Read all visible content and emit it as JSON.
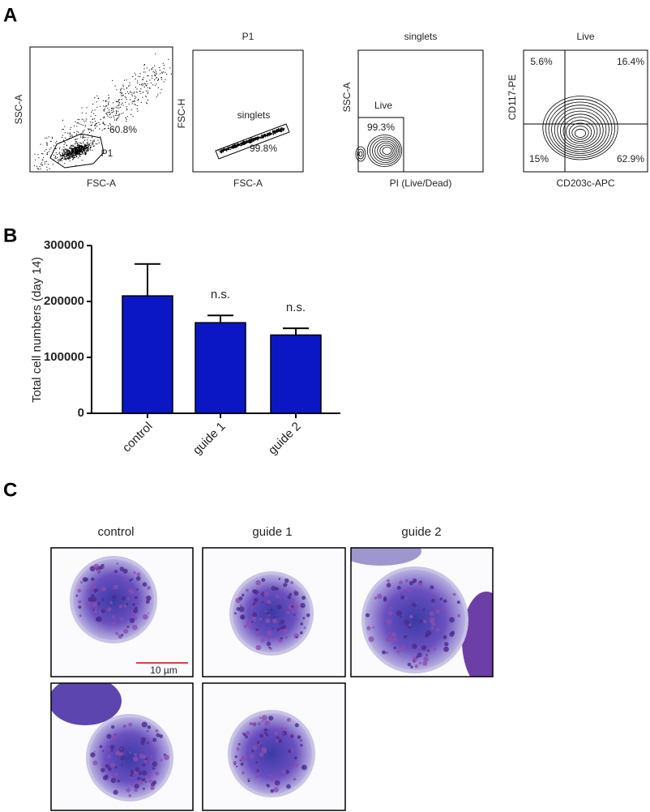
{
  "panel_labels": [
    "A",
    "B",
    "C"
  ],
  "panel_a": {
    "plots": [
      {
        "x_label": "FSC-A",
        "y_label": "SSC-A",
        "annotations": [
          "60.8%",
          "P1"
        ]
      },
      {
        "title": "P1",
        "x_label": "FSC-A",
        "y_label": "FSC-H",
        "annotations": [
          "singlets",
          "99.8%"
        ]
      },
      {
        "title": "singlets",
        "x_label": "PI (Live/Dead)",
        "y_label": "SSC-A",
        "annotations": [
          "Live",
          "99.3%"
        ]
      },
      {
        "title": "Live",
        "x_label": "CD203c-APC",
        "y_label": "CD117-PE",
        "annotations": [
          "5.6%",
          "16.4%",
          "15%",
          "62.9%"
        ]
      }
    ]
  },
  "chart_data": {
    "type": "bar",
    "y_label": "Total cell numbers (day 14)",
    "categories": [
      "control",
      "guide 1",
      "guide 2"
    ],
    "values": [
      210000,
      162000,
      140000
    ],
    "errors": [
      57000,
      13000,
      12000
    ],
    "significance": [
      null,
      "n.s.",
      "n.s."
    ],
    "color": "#0b17c4",
    "ylim": [
      0,
      300000
    ],
    "yticks": [
      0,
      100000,
      200000,
      300000
    ]
  },
  "panel_c": {
    "columns": [
      "control",
      "guide 1",
      "guide 2"
    ],
    "scale_bar": "10 µm"
  }
}
